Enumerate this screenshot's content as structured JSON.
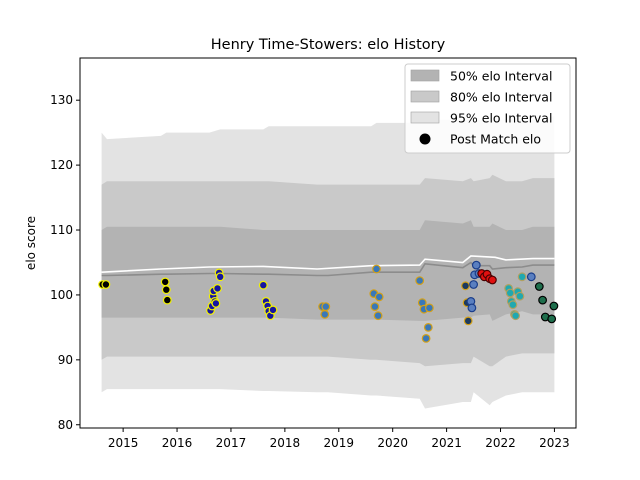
{
  "chart_data": {
    "type": "line",
    "title": "Henry Time-Stowers: elo History",
    "xlabel": "",
    "ylabel": "elo score",
    "xlim": [
      2014.2,
      2023.4
    ],
    "ylim": [
      79.5,
      136.5
    ],
    "x_ticks": [
      2015,
      2016,
      2017,
      2018,
      2019,
      2020,
      2021,
      2022,
      2023
    ],
    "x_tick_labels": [
      "2015",
      "2016",
      "2017",
      "2018",
      "2019",
      "2020",
      "2021",
      "2022",
      "2023"
    ],
    "y_ticks": [
      80,
      90,
      100,
      110,
      120,
      130
    ],
    "y_tick_labels": [
      "80",
      "90",
      "100",
      "110",
      "120",
      "130"
    ],
    "grid": false,
    "legend": {
      "placement": "top-right",
      "entries": [
        {
          "label": "50% elo Interval",
          "color": "#b3b3b3",
          "kind": "patch"
        },
        {
          "label": "80% elo Interval",
          "color": "#c9c9c9",
          "kind": "patch"
        },
        {
          "label": "95% elo Interval",
          "color": "#e3e3e3",
          "kind": "patch"
        },
        {
          "label": "Post Match elo",
          "color": "#000000",
          "kind": "marker"
        }
      ]
    },
    "intervals": {
      "x": [
        2014.6,
        2014.7,
        2015.7,
        2015.8,
        2016.6,
        2016.8,
        2017.6,
        2017.7,
        2018.6,
        2018.8,
        2019.6,
        2019.7,
        2020.5,
        2020.6,
        2021.3,
        2021.45,
        2021.5,
        2021.8,
        2021.85,
        2022.1,
        2022.4,
        2022.6,
        2023.0
      ],
      "p95_high": [
        125.0,
        124.0,
        124.5,
        125.0,
        125.0,
        125.5,
        125.5,
        126.0,
        126.0,
        126.0,
        126.0,
        126.5,
        126.5,
        127.0,
        127.0,
        127.5,
        127.0,
        127.0,
        127.0,
        127.0,
        127.0,
        127.0,
        127.5
      ],
      "p80_high": [
        117.0,
        117.5,
        117.5,
        117.5,
        117.5,
        117.5,
        117.5,
        117.5,
        117.0,
        117.0,
        117.0,
        117.0,
        117.0,
        118.0,
        117.5,
        118.0,
        117.5,
        118.0,
        118.5,
        117.5,
        117.5,
        118.0,
        118.0
      ],
      "p50_high": [
        110.0,
        110.5,
        110.5,
        110.5,
        110.5,
        110.5,
        110.0,
        110.0,
        110.0,
        110.0,
        110.0,
        110.0,
        110.0,
        111.5,
        111.0,
        111.5,
        110.5,
        110.5,
        111.0,
        110.0,
        110.0,
        110.5,
        110.5
      ],
      "median": [
        103.0,
        103.0,
        103.2,
        103.2,
        103.3,
        103.3,
        103.2,
        103.2,
        103.0,
        103.0,
        103.5,
        103.5,
        103.5,
        104.8,
        104.2,
        105.0,
        104.5,
        104.5,
        104.0,
        104.2,
        104.3,
        104.6,
        104.6
      ],
      "p50_low": [
        96.5,
        96.5,
        96.5,
        96.5,
        96.5,
        96.5,
        96.5,
        96.5,
        96.2,
        96.2,
        96.2,
        96.2,
        96.0,
        96.0,
        96.5,
        96.5,
        96.8,
        97.0,
        96.0,
        97.0,
        97.5,
        97.0,
        97.0
      ],
      "p80_low": [
        90.0,
        90.5,
        90.5,
        90.5,
        90.5,
        90.5,
        90.5,
        90.5,
        90.5,
        90.5,
        90.0,
        90.0,
        89.5,
        89.0,
        89.5,
        89.5,
        90.5,
        89.0,
        89.0,
        90.5,
        91.0,
        91.0,
        91.0
      ],
      "p95_low": [
        85.0,
        85.5,
        85.5,
        85.5,
        85.5,
        85.5,
        85.2,
        85.2,
        85.0,
        85.0,
        84.5,
        84.5,
        84.0,
        82.5,
        83.5,
        83.5,
        85.0,
        83.0,
        83.5,
        84.5,
        85.0,
        85.0,
        85.0
      ]
    },
    "mean_line": {
      "color": "#ffffff",
      "x": [
        2014.6,
        2015.7,
        2016.6,
        2017.6,
        2018.6,
        2019.6,
        2020.5,
        2020.6,
        2021.3,
        2021.45,
        2021.9,
        2022.1,
        2022.6,
        2023.0
      ],
      "y": [
        103.5,
        104.0,
        104.3,
        104.4,
        104.0,
        104.5,
        104.6,
        105.5,
        105.0,
        106.0,
        105.8,
        105.4,
        105.6,
        105.6
      ]
    },
    "series": [
      {
        "edge": "#f2f200",
        "fill": "#000000",
        "points": [
          [
            2014.62,
            101.6
          ],
          [
            2014.68,
            101.6
          ],
          [
            2015.78,
            102.0
          ],
          [
            2015.8,
            100.8
          ],
          [
            2015.82,
            99.2
          ]
        ]
      },
      {
        "edge": "#f2f200",
        "fill": "#1616a0",
        "points": [
          [
            2016.62,
            97.6
          ],
          [
            2016.65,
            98.3
          ],
          [
            2016.67,
            99.8
          ],
          [
            2016.68,
            100.6
          ],
          [
            2016.7,
            99.0
          ],
          [
            2016.72,
            98.7
          ],
          [
            2016.75,
            101.0
          ],
          [
            2016.78,
            103.4
          ],
          [
            2016.8,
            102.8
          ]
        ]
      },
      {
        "edge": "#f2f200",
        "fill": "#1616a0",
        "points": [
          [
            2017.6,
            101.5
          ],
          [
            2017.65,
            99.0
          ],
          [
            2017.68,
            98.3
          ],
          [
            2017.7,
            97.5
          ],
          [
            2017.73,
            96.8
          ],
          [
            2017.78,
            97.7
          ]
        ]
      },
      {
        "edge": "#d4a017",
        "fill": "#3a78b8",
        "points": [
          [
            2018.7,
            98.2
          ],
          [
            2018.74,
            97.0
          ],
          [
            2018.76,
            98.2
          ]
        ]
      },
      {
        "edge": "#d4a017",
        "fill": "#3a78b8",
        "points": [
          [
            2019.65,
            100.2
          ],
          [
            2019.67,
            98.2
          ],
          [
            2019.7,
            104.0
          ],
          [
            2019.73,
            96.8
          ],
          [
            2019.75,
            99.7
          ]
        ]
      },
      {
        "edge": "#d4a017",
        "fill": "#3a78b8",
        "points": [
          [
            2020.5,
            102.2
          ],
          [
            2020.55,
            98.8
          ],
          [
            2020.58,
            97.8
          ],
          [
            2020.62,
            93.3
          ],
          [
            2020.66,
            95.0
          ],
          [
            2020.68,
            98.0
          ]
        ]
      },
      {
        "edge": "#d4a017",
        "fill": "#1c3a5e",
        "points": [
          [
            2021.35,
            101.4
          ],
          [
            2021.38,
            98.8
          ],
          [
            2021.4,
            96.0
          ]
        ]
      },
      {
        "edge": "#1a3d8a",
        "fill": "#5a7fc0",
        "points": [
          [
            2021.45,
            99.0
          ],
          [
            2021.47,
            98.0
          ],
          [
            2021.5,
            101.6
          ],
          [
            2021.52,
            103.1
          ],
          [
            2021.55,
            104.6
          ],
          [
            2021.6,
            103.3
          ]
        ]
      },
      {
        "edge": "#4a0000",
        "fill": "#e01010",
        "points": [
          [
            2021.65,
            103.3
          ],
          [
            2021.7,
            102.8
          ],
          [
            2021.75,
            103.2
          ],
          [
            2021.8,
            102.5
          ],
          [
            2021.85,
            102.3
          ]
        ]
      },
      {
        "edge": "#b0a060",
        "fill": "#20a8b0",
        "points": [
          [
            2022.15,
            101.0
          ],
          [
            2022.18,
            100.3
          ],
          [
            2022.2,
            99.0
          ],
          [
            2022.23,
            98.5
          ],
          [
            2022.26,
            97.0
          ],
          [
            2022.28,
            96.8
          ],
          [
            2022.32,
            100.5
          ],
          [
            2022.36,
            99.8
          ],
          [
            2022.4,
            102.8
          ]
        ]
      },
      {
        "edge": "#1a3d8a",
        "fill": "#5a7fc0",
        "points": [
          [
            2022.57,
            102.8
          ]
        ]
      },
      {
        "edge": "#000000",
        "fill": "#1e6e4c",
        "points": [
          [
            2022.72,
            101.3
          ],
          [
            2022.78,
            99.2
          ],
          [
            2022.83,
            96.6
          ],
          [
            2022.95,
            96.3
          ],
          [
            2022.99,
            98.3
          ]
        ]
      }
    ]
  }
}
